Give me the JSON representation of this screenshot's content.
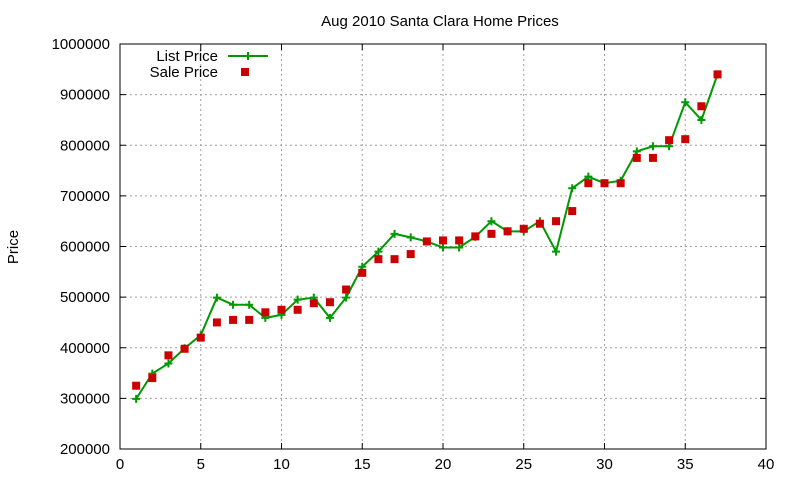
{
  "chart_data": {
    "type": "line",
    "title": "Aug 2010 Santa Clara Home Prices",
    "xlabel": "",
    "ylabel": "Price",
    "xlim": [
      0,
      40
    ],
    "ylim": [
      200000,
      1000000
    ],
    "x_ticks": [
      0,
      5,
      10,
      15,
      20,
      25,
      30,
      35,
      40
    ],
    "y_ticks": [
      200000,
      300000,
      400000,
      500000,
      600000,
      700000,
      800000,
      900000,
      1000000
    ],
    "grid": true,
    "legend_position": "top-left",
    "series": [
      {
        "name": "List Price",
        "style": "line-with-plus-markers",
        "color": "#009900",
        "x": [
          1,
          2,
          3,
          4,
          5,
          6,
          7,
          8,
          9,
          10,
          11,
          12,
          13,
          14,
          15,
          16,
          17,
          18,
          19,
          20,
          21,
          22,
          23,
          24,
          25,
          26,
          27,
          28,
          29,
          30,
          31,
          32,
          33,
          34,
          35,
          36,
          37
        ],
        "values": [
          299000,
          349000,
          369000,
          399000,
          425000,
          499000,
          485000,
          485000,
          459000,
          465000,
          495000,
          499000,
          459000,
          499000,
          560000,
          590000,
          625000,
          618000,
          610000,
          598000,
          598000,
          619000,
          650000,
          630000,
          630000,
          650000,
          590000,
          715000,
          738000,
          725000,
          730000,
          788000,
          798000,
          798000,
          885000,
          850000,
          940000
        ]
      },
      {
        "name": "Sale Price",
        "style": "square-markers",
        "color": "#cc0000",
        "x": [
          1,
          2,
          3,
          4,
          5,
          6,
          7,
          8,
          9,
          10,
          11,
          12,
          13,
          14,
          15,
          16,
          17,
          18,
          19,
          20,
          21,
          22,
          23,
          24,
          25,
          26,
          27,
          28,
          29,
          30,
          31,
          32,
          33,
          34,
          35,
          36,
          37
        ],
        "values": [
          325000,
          340000,
          385000,
          398000,
          420000,
          450000,
          455000,
          455000,
          470000,
          475000,
          475000,
          488000,
          490000,
          515000,
          548000,
          575000,
          575000,
          585000,
          610000,
          612000,
          612000,
          620000,
          625000,
          630000,
          635000,
          645000,
          650000,
          670000,
          725000,
          725000,
          725000,
          775000,
          775000,
          810000,
          812000,
          877000,
          940000
        ]
      }
    ]
  }
}
